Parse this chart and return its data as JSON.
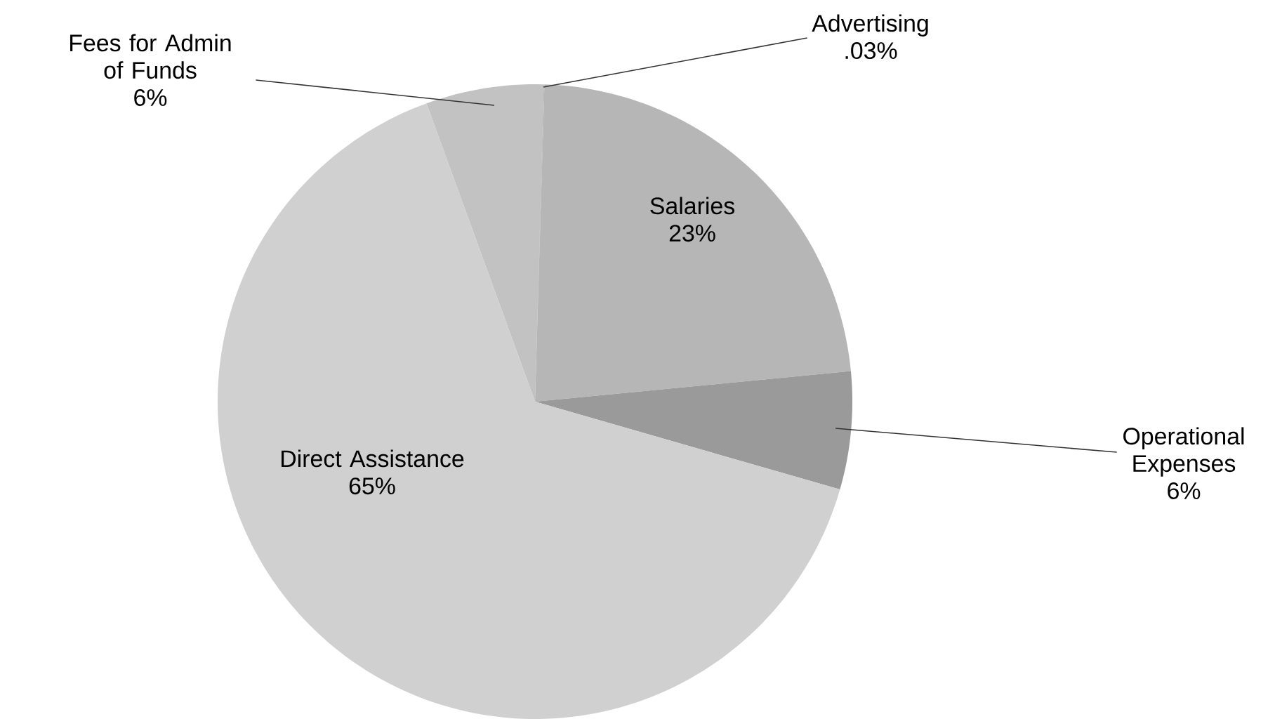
{
  "chart_data": {
    "type": "pie",
    "categories": [
      "Fees for Admin of Funds",
      "Advertising",
      "Salaries",
      "Operational Expenses",
      "Direct Assistance"
    ],
    "values": [
      6,
      0.03,
      23,
      6,
      65
    ],
    "value_labels": [
      "6%",
      ".03%",
      "23%",
      "6%",
      "65%"
    ],
    "colors": [
      "#c2c2c2",
      "#a8a8a8",
      "#b6b6b6",
      "#9a9a9a",
      "#d0d0d0"
    ]
  }
}
